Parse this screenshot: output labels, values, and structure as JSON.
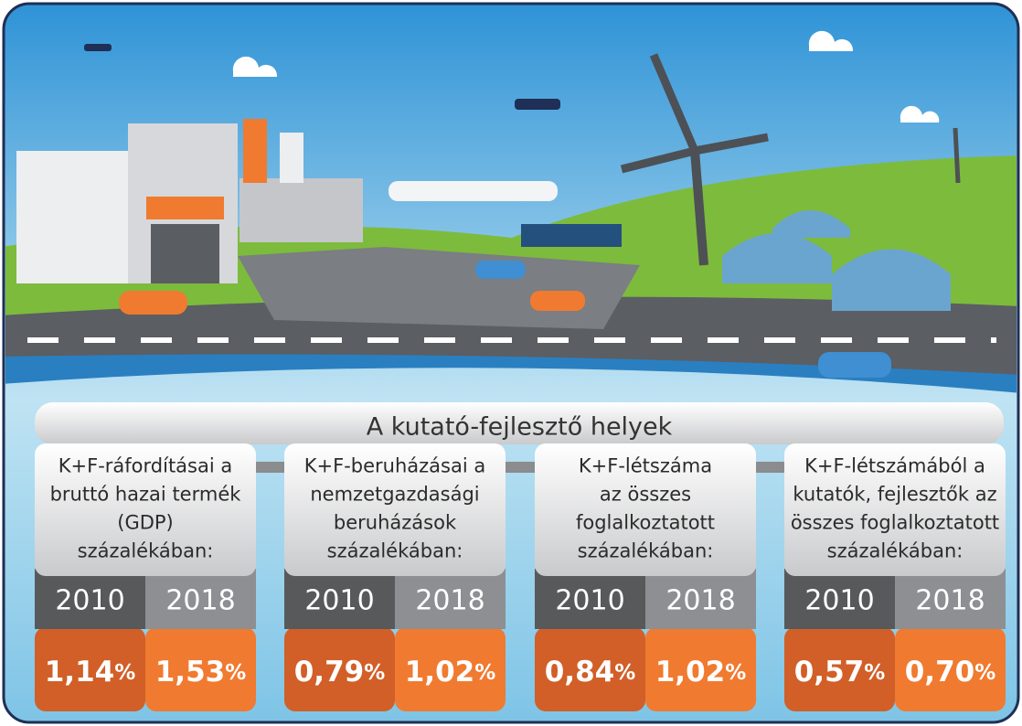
{
  "title": "A kutató-fejlesztő helyek",
  "panels": [
    {
      "label_lines": [
        "K+F-ráfordításai a",
        "bruttó hazai termék",
        "(GDP)",
        "százalékában:"
      ],
      "years": [
        "2010",
        "2018"
      ],
      "values": [
        {
          "number": "1,14",
          "unit": "%"
        },
        {
          "number": "1,53",
          "unit": "%"
        }
      ]
    },
    {
      "label_lines": [
        "K+F-beruházásai a",
        "nemzetgazdasági",
        "beruházások",
        "százalékában:"
      ],
      "years": [
        "2010",
        "2018"
      ],
      "values": [
        {
          "number": "0,79",
          "unit": "%"
        },
        {
          "number": "1,02",
          "unit": "%"
        }
      ]
    },
    {
      "label_lines": [
        "K+F-létszáma",
        "az összes",
        "foglalkoztatott",
        "százalékában:"
      ],
      "years": [
        "2010",
        "2018"
      ],
      "values": [
        {
          "number": "0,84",
          "unit": "%"
        },
        {
          "number": "1,02",
          "unit": "%"
        }
      ]
    },
    {
      "label_lines": [
        "K+F-létszámából a",
        "kutatók, fejlesztők az",
        "összes foglalkoztatott",
        "százalékában:"
      ],
      "years": [
        "2010",
        "2018"
      ],
      "values": [
        {
          "number": "0,57",
          "unit": "%"
        },
        {
          "number": "0,70",
          "unit": "%"
        }
      ]
    }
  ]
}
